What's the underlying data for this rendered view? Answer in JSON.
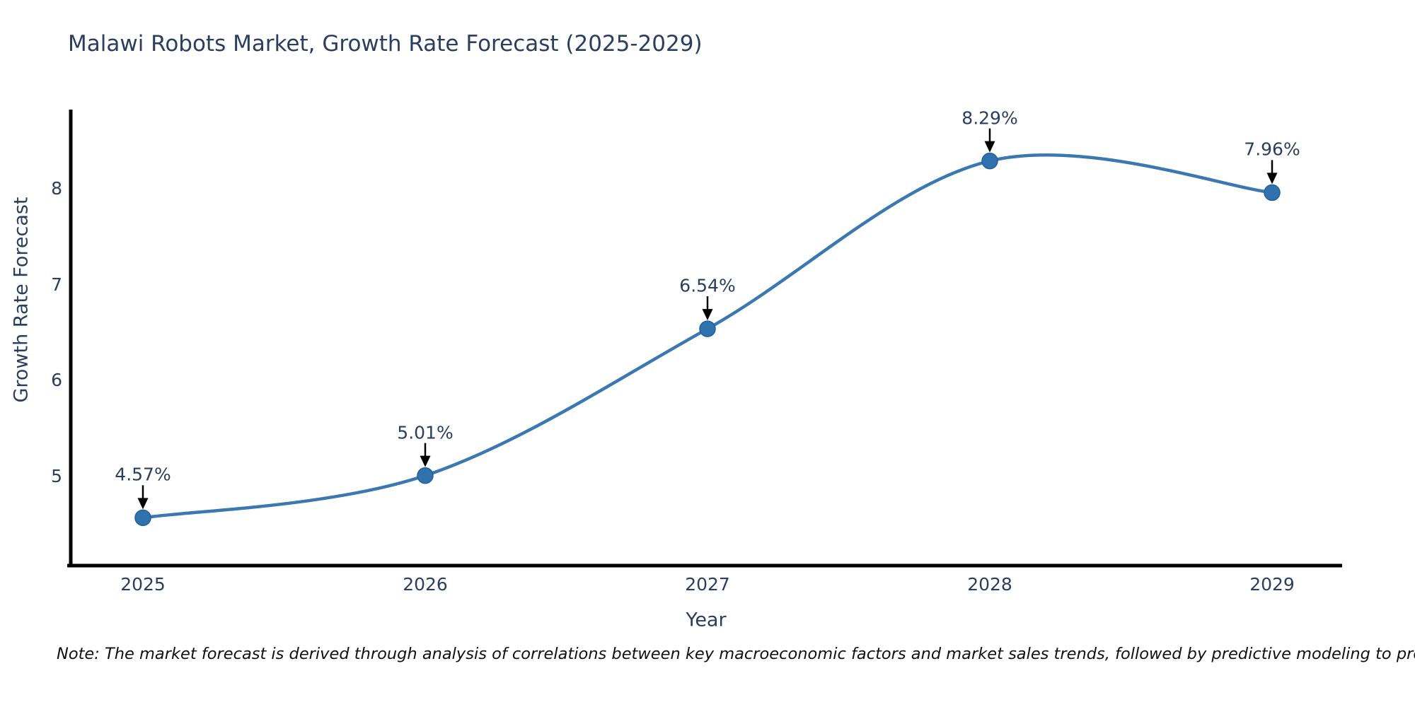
{
  "figure": {
    "title": "Malawi Robots Market, Growth Rate Forecast (2025-2029)",
    "note": "Note: The market forecast is derived through analysis of correlations between key macroeconomic factors and market sales trends, followed by predictive modeling to project future sales."
  },
  "chart_data": {
    "type": "line",
    "line_shape": "spline",
    "title": "Malawi Robots Market, Growth Rate Forecast (2025-2029)",
    "xlabel": "Year",
    "ylabel": "Growth Rate Forecast",
    "x": [
      2025,
      2026,
      2027,
      2028,
      2029
    ],
    "series": [
      {
        "name": "Growth Rate Forecast",
        "values": [
          4.57,
          5.01,
          6.54,
          8.29,
          7.96
        ]
      }
    ],
    "point_labels": [
      "4.57%",
      "5.01%",
      "6.54%",
      "8.29%",
      "7.96%"
    ],
    "xticks": [
      "2025",
      "2026",
      "2027",
      "2028",
      "2029"
    ],
    "yticks": [
      5,
      6,
      7,
      8
    ],
    "xlim": [
      2024.74,
      2029.25
    ],
    "ylim": [
      4.06,
      8.83
    ],
    "grid": false,
    "legend": "none",
    "annotations_have_arrows": true,
    "colors": {
      "line": "#3b78b2",
      "marker": "#2f72ae",
      "marker_edge": "#265f95",
      "axis_line": "#000000",
      "text": "#2a3f5f",
      "annotation_arrow": "#000000",
      "note_text": "#111111",
      "background": "#ffffff"
    }
  }
}
